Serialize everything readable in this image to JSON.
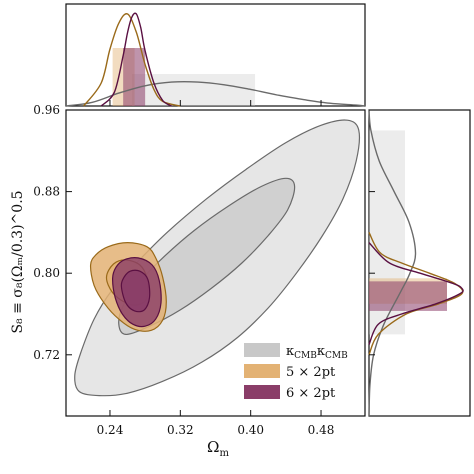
{
  "figure": {
    "title": "",
    "xlabel": "Ω",
    "xlabel_sub": "m",
    "ylabel": "S₈ ≡ σ₈(Ωₘ/0.3)^0.5"
  },
  "chart_data": {
    "type": "corner",
    "x_param": "Omega_m",
    "y_param": "S_8",
    "xlim": [
      0.19,
      0.53
    ],
    "ylim": [
      0.66,
      0.96
    ],
    "xticks": [
      0.24,
      0.32,
      0.4,
      0.48
    ],
    "xtick_labels": [
      "0.24",
      "0.32",
      "0.40",
      "0.48"
    ],
    "yticks": [
      0.72,
      0.8,
      0.88,
      0.96
    ],
    "ytick_labels": [
      "0.72",
      "0.80",
      "0.88",
      "0.96"
    ],
    "grid": false,
    "legend_position": "lower-right",
    "series": [
      {
        "name": "κCMBκCMB",
        "legend_main": "κ",
        "legend_sub1": "CMB",
        "legend_main2": "κ",
        "legend_sub2": "CMB",
        "fill_color": "#c8c8c8",
        "line_color": "#6a6a6a",
        "omega_m_68": [
          0.265,
          0.405
        ],
        "s8_68": [
          0.74,
          0.94
        ],
        "contour_outer": [
          [
            0.205,
            0.684
          ],
          [
            0.228,
            0.68
          ],
          [
            0.258,
            0.682
          ],
          [
            0.3,
            0.694
          ],
          [
            0.345,
            0.713
          ],
          [
            0.385,
            0.737
          ],
          [
            0.42,
            0.766
          ],
          [
            0.452,
            0.8
          ],
          [
            0.481,
            0.836
          ],
          [
            0.505,
            0.873
          ],
          [
            0.52,
            0.91
          ],
          [
            0.523,
            0.94
          ],
          [
            0.51,
            0.95
          ],
          [
            0.48,
            0.945
          ],
          [
            0.44,
            0.928
          ],
          [
            0.395,
            0.902
          ],
          [
            0.35,
            0.873
          ],
          [
            0.305,
            0.84
          ],
          [
            0.268,
            0.808
          ],
          [
            0.242,
            0.783
          ],
          [
            0.222,
            0.755
          ],
          [
            0.208,
            0.725
          ],
          [
            0.2,
            0.7
          ]
        ],
        "contour_inner": [
          [
            0.258,
            0.74
          ],
          [
            0.285,
            0.748
          ],
          [
            0.32,
            0.764
          ],
          [
            0.355,
            0.785
          ],
          [
            0.39,
            0.81
          ],
          [
            0.42,
            0.837
          ],
          [
            0.442,
            0.862
          ],
          [
            0.45,
            0.885
          ],
          [
            0.44,
            0.893
          ],
          [
            0.412,
            0.885
          ],
          [
            0.375,
            0.866
          ],
          [
            0.336,
            0.842
          ],
          [
            0.3,
            0.815
          ],
          [
            0.272,
            0.79
          ],
          [
            0.255,
            0.768
          ],
          [
            0.25,
            0.75
          ]
        ],
        "marginal_x": {
          "x": [
            0.19,
            0.22,
            0.25,
            0.28,
            0.31,
            0.34,
            0.37,
            0.4,
            0.43,
            0.46,
            0.49,
            0.52,
            0.53
          ],
          "density": [
            0.0,
            0.04,
            0.14,
            0.22,
            0.26,
            0.26,
            0.23,
            0.18,
            0.12,
            0.07,
            0.03,
            0.01,
            0.0
          ]
        },
        "marginal_y": {
          "y": [
            0.66,
            0.69,
            0.72,
            0.75,
            0.78,
            0.8,
            0.82,
            0.85,
            0.88,
            0.91,
            0.94,
            0.96
          ],
          "density": [
            0.0,
            0.01,
            0.05,
            0.16,
            0.33,
            0.44,
            0.5,
            0.43,
            0.27,
            0.11,
            0.02,
            0.0
          ]
        }
      },
      {
        "name": "5 × 2pt",
        "legend_text": "5 × 2pt",
        "fill_color": "#e3b274",
        "line_color": "#9a6a1a",
        "omega_m_68": [
          0.243,
          0.268
        ],
        "s8_68": [
          0.77,
          0.795
        ],
        "contour_outer": [
          [
            0.218,
            0.808
          ],
          [
            0.222,
            0.788
          ],
          [
            0.234,
            0.77
          ],
          [
            0.25,
            0.755
          ],
          [
            0.268,
            0.745
          ],
          [
            0.287,
            0.744
          ],
          [
            0.3,
            0.754
          ],
          [
            0.304,
            0.772
          ],
          [
            0.3,
            0.796
          ],
          [
            0.292,
            0.815
          ],
          [
            0.282,
            0.826
          ],
          [
            0.26,
            0.83
          ],
          [
            0.238,
            0.826
          ],
          [
            0.224,
            0.818
          ]
        ],
        "contour_inner": [
          [
            0.236,
            0.796
          ],
          [
            0.243,
            0.781
          ],
          [
            0.258,
            0.771
          ],
          [
            0.272,
            0.769
          ],
          [
            0.282,
            0.776
          ],
          [
            0.282,
            0.795
          ],
          [
            0.274,
            0.808
          ],
          [
            0.258,
            0.813
          ],
          [
            0.244,
            0.809
          ]
        ],
        "marginal_x": {
          "x": [
            0.21,
            0.23,
            0.24,
            0.25,
            0.26,
            0.27,
            0.28,
            0.29,
            0.3,
            0.32
          ],
          "density": [
            0.0,
            0.25,
            0.62,
            0.9,
            1.0,
            0.8,
            0.45,
            0.18,
            0.05,
            0.0
          ]
        },
        "marginal_y": {
          "y": [
            0.72,
            0.74,
            0.76,
            0.77,
            0.78,
            0.79,
            0.8,
            0.81,
            0.82,
            0.84
          ],
          "density": [
            0.0,
            0.1,
            0.4,
            0.75,
            1.0,
            0.92,
            0.65,
            0.35,
            0.12,
            0.0
          ]
        }
      },
      {
        "name": "6 × 2pt",
        "legend_text": "6 × 2pt",
        "fill_color": "#8a3d68",
        "line_color": "#5a1042",
        "omega_m_68": [
          0.255,
          0.28
        ],
        "s8_68": [
          0.763,
          0.792
        ],
        "contour_outer": [
          [
            0.243,
            0.795
          ],
          [
            0.246,
            0.776
          ],
          [
            0.254,
            0.76
          ],
          [
            0.266,
            0.75
          ],
          [
            0.28,
            0.748
          ],
          [
            0.292,
            0.755
          ],
          [
            0.298,
            0.771
          ],
          [
            0.296,
            0.793
          ],
          [
            0.288,
            0.808
          ],
          [
            0.272,
            0.815
          ],
          [
            0.256,
            0.813
          ],
          [
            0.247,
            0.806
          ]
        ],
        "contour_inner": [
          [
            0.253,
            0.787
          ],
          [
            0.258,
            0.771
          ],
          [
            0.268,
            0.763
          ],
          [
            0.279,
            0.764
          ],
          [
            0.285,
            0.776
          ],
          [
            0.283,
            0.794
          ],
          [
            0.274,
            0.802
          ],
          [
            0.263,
            0.802
          ],
          [
            0.256,
            0.796
          ]
        ],
        "marginal_x": {
          "x": [
            0.23,
            0.245,
            0.255,
            0.26,
            0.265,
            0.27,
            0.275,
            0.28,
            0.29,
            0.3,
            0.31
          ],
          "density": [
            0.0,
            0.15,
            0.55,
            0.8,
            0.97,
            1.0,
            0.85,
            0.6,
            0.25,
            0.06,
            0.0
          ]
        },
        "marginal_y": {
          "y": [
            0.73,
            0.75,
            0.76,
            0.77,
            0.78,
            0.785,
            0.79,
            0.8,
            0.81,
            0.83
          ],
          "density": [
            0.0,
            0.1,
            0.35,
            0.72,
            0.98,
            1.0,
            0.9,
            0.55,
            0.22,
            0.0
          ]
        }
      }
    ]
  }
}
